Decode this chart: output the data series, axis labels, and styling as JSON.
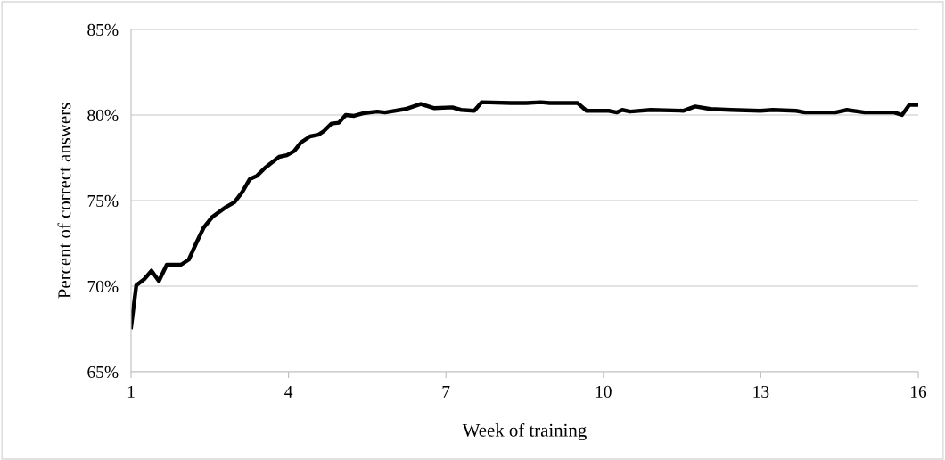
{
  "chart_data": {
    "type": "line",
    "xlabel": "Week of training",
    "ylabel": "Percent of correct answers",
    "x": [
      1.0,
      1.1,
      1.25,
      1.39,
      1.53,
      1.68,
      1.95,
      2.1,
      2.24,
      2.38,
      2.55,
      2.8,
      2.97,
      3.12,
      3.26,
      3.4,
      3.55,
      3.82,
      3.97,
      4.11,
      4.24,
      4.41,
      4.57,
      4.67,
      4.82,
      4.96,
      5.09,
      5.25,
      5.42,
      5.69,
      5.84,
      6.23,
      6.52,
      6.78,
      7.12,
      7.29,
      7.54,
      7.68,
      8.24,
      8.53,
      8.81,
      8.98,
      9.51,
      9.68,
      10.1,
      10.26,
      10.36,
      10.51,
      10.9,
      11.53,
      11.75,
      12.04,
      12.43,
      12.99,
      13.23,
      13.67,
      13.84,
      14.42,
      14.64,
      14.98,
      15.54,
      15.69,
      15.83,
      16.0
    ],
    "series": [
      {
        "color": "#000000",
        "values": [
          67.6,
          70.05,
          70.4,
          70.9,
          70.3,
          71.25,
          71.25,
          71.55,
          72.5,
          73.4,
          74.05,
          74.6,
          74.9,
          75.5,
          76.25,
          76.45,
          76.9,
          77.55,
          77.65,
          77.9,
          78.4,
          78.75,
          78.85,
          79.05,
          79.5,
          79.55,
          80.0,
          79.95,
          80.1,
          80.2,
          80.15,
          80.35,
          80.65,
          80.4,
          80.45,
          80.3,
          80.25,
          80.75,
          80.7,
          80.7,
          80.75,
          80.7,
          80.7,
          80.25,
          80.25,
          80.15,
          80.3,
          80.2,
          80.3,
          80.25,
          80.5,
          80.35,
          80.3,
          80.25,
          80.3,
          80.25,
          80.15,
          80.15,
          80.3,
          80.15,
          80.15,
          80.0,
          80.6,
          80.6
        ]
      }
    ],
    "xlim": [
      1,
      16
    ],
    "xticks": [
      1,
      4,
      7,
      10,
      13,
      16
    ],
    "ylim": [
      65,
      85
    ],
    "yticks": [
      {
        "value": 65,
        "label": "65%"
      },
      {
        "value": 70,
        "label": "70%"
      },
      {
        "value": 75,
        "label": "75%"
      },
      {
        "value": 80,
        "label": "80%"
      },
      {
        "value": 85,
        "label": "85%"
      }
    ],
    "grid": "y",
    "legend": false,
    "marker": "none",
    "line_style": "solid"
  }
}
